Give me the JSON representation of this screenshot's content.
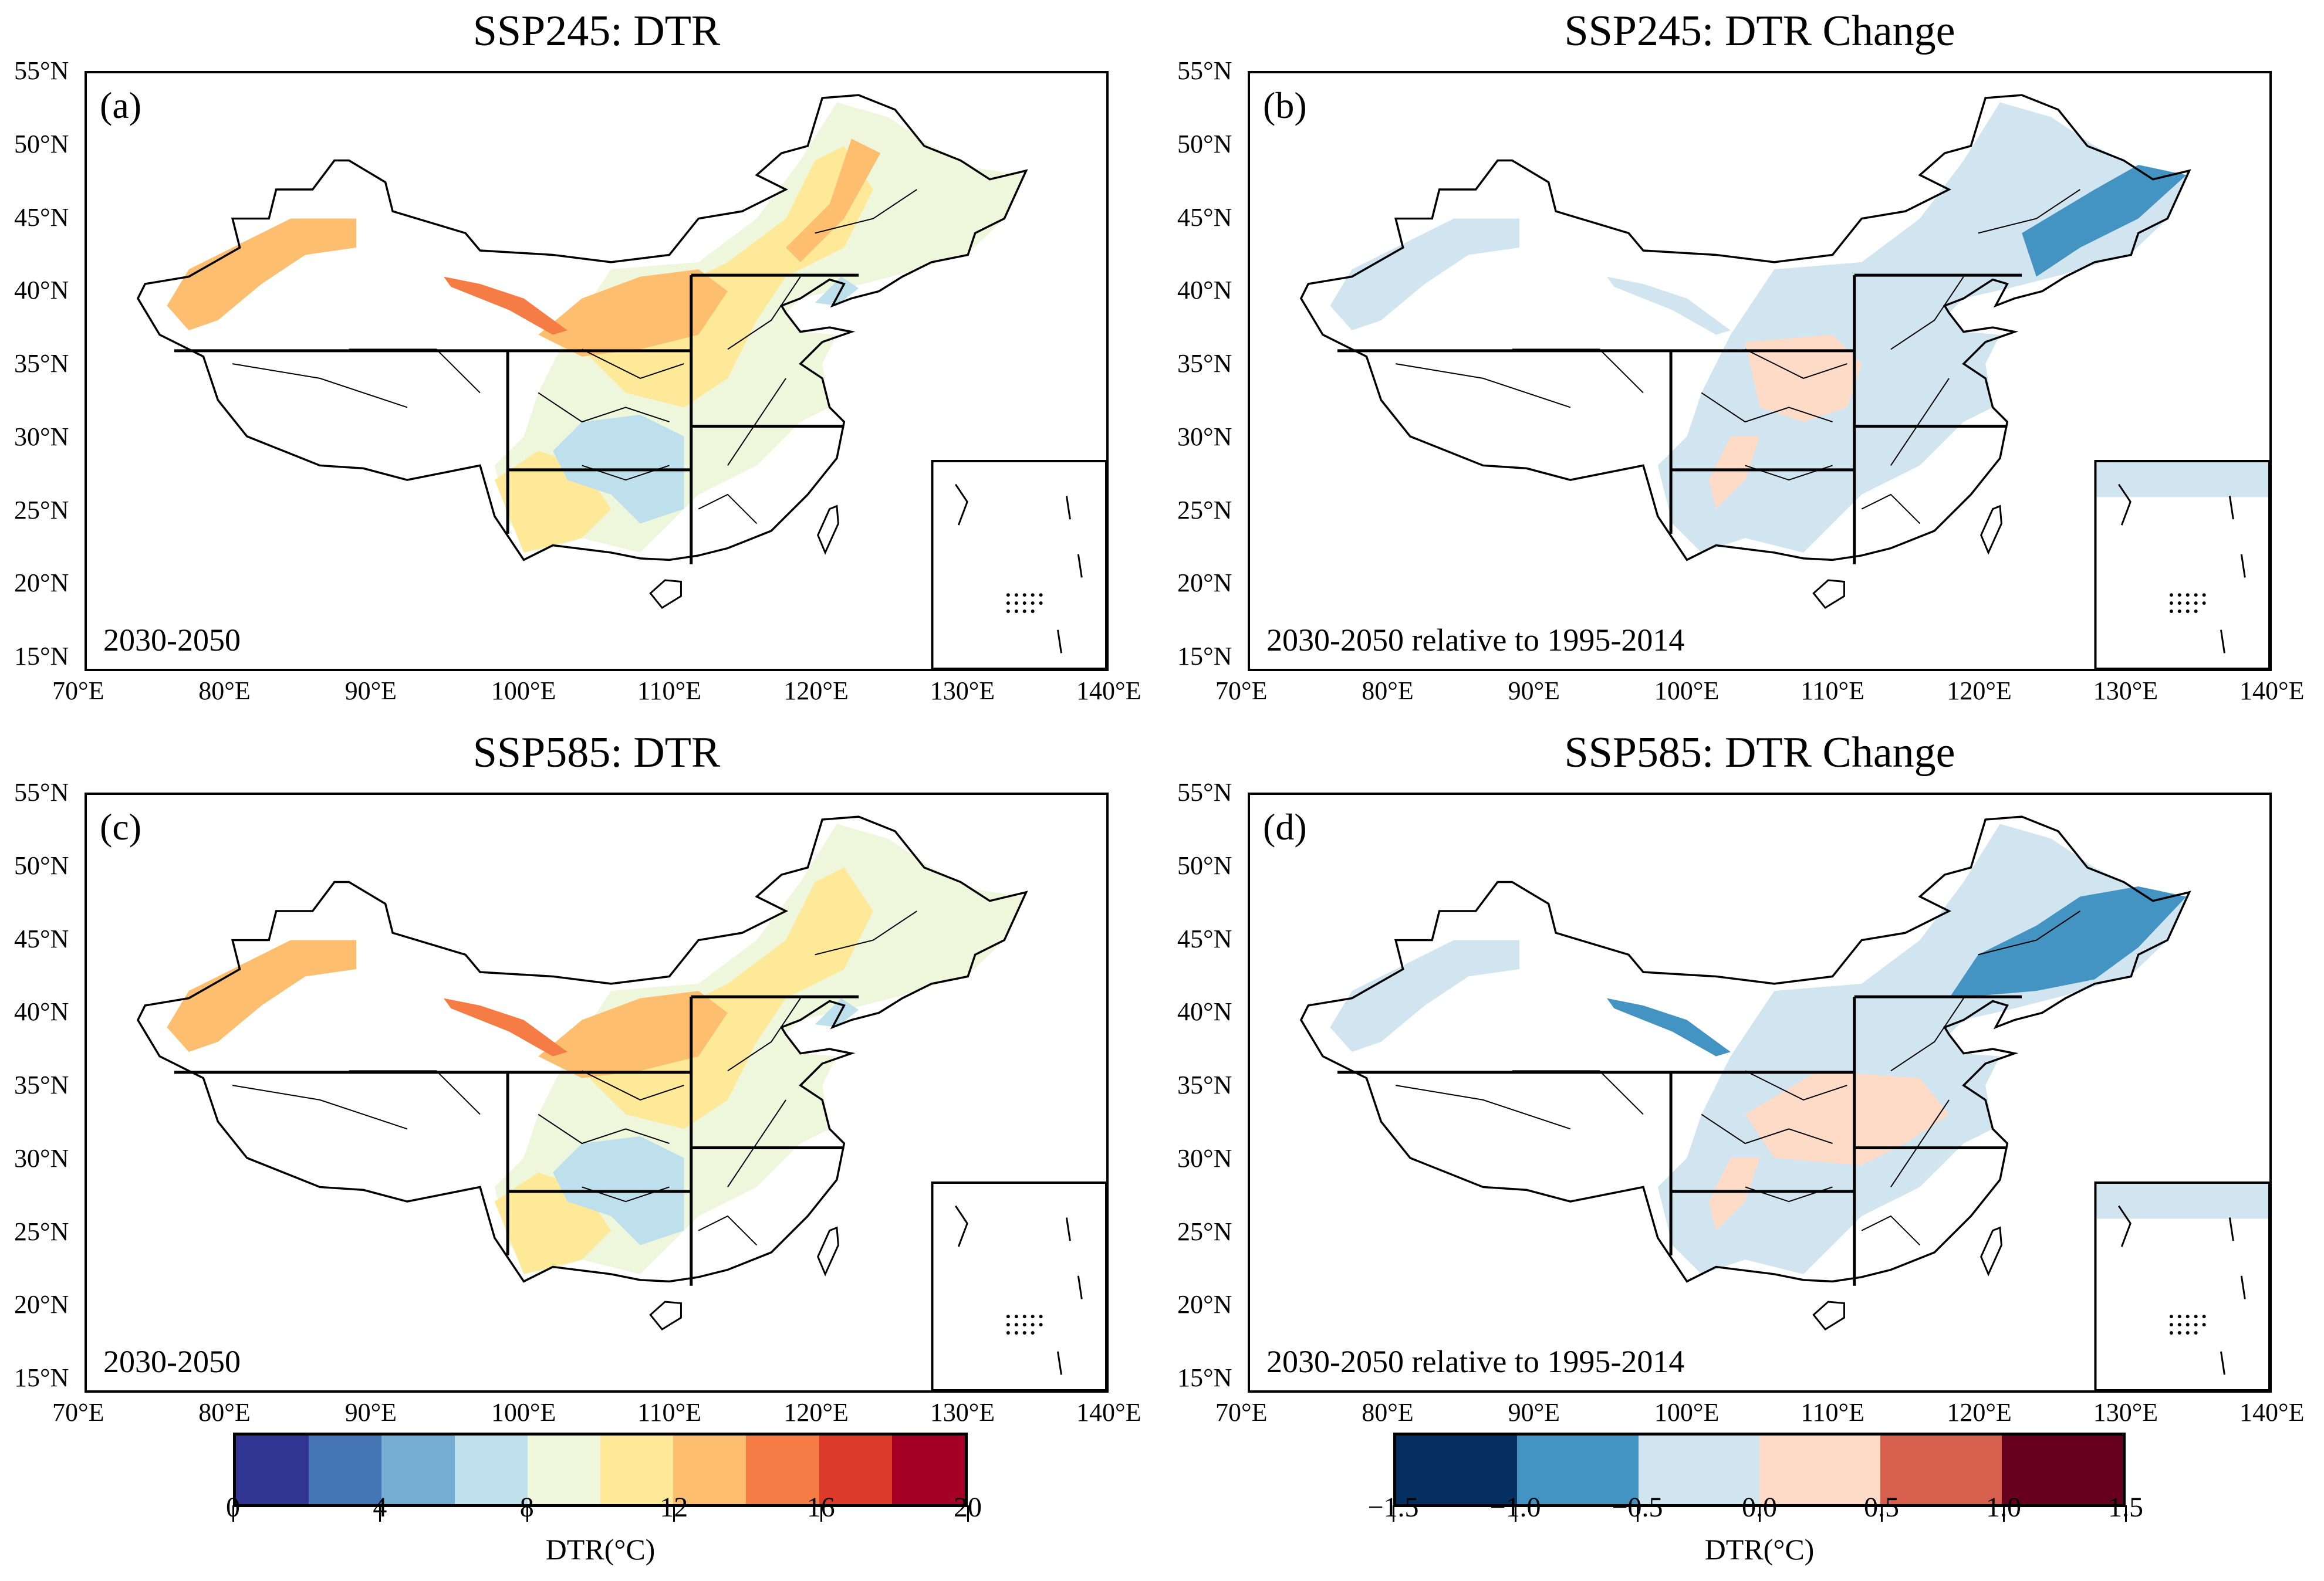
{
  "panels": [
    {
      "title": "SSP245: DTR",
      "label": "(a)",
      "period": "2030-2050",
      "scale": 0,
      "fills": [
        {
          "region": "east",
          "bin": 4
        },
        {
          "region": "yellow_n",
          "bin": 5
        },
        {
          "region": "yellow_sw",
          "bin": 5
        },
        {
          "region": "orange_n",
          "bin": 6
        },
        {
          "region": "orange_ne",
          "bin": 6
        },
        {
          "region": "sichuan",
          "bin": 3
        },
        {
          "region": "liaoning",
          "bin": 3
        },
        {
          "region": "xinjiang",
          "bin": 6
        },
        {
          "region": "hexi",
          "bin": 7
        }
      ]
    },
    {
      "title": "SSP245: DTR Change",
      "label": "(b)",
      "period": "2030-2050 relative to 1995-2014",
      "scale": 1,
      "fills": [
        {
          "region": "east",
          "bin": 2
        },
        {
          "region": "xinjiang",
          "bin": 2
        },
        {
          "region": "hexi",
          "bin": 2
        },
        {
          "region": "pink_c",
          "bin": 3
        },
        {
          "region": "pink_sw",
          "bin": 3
        },
        {
          "region": "ne_blue",
          "bin": 1
        }
      ]
    },
    {
      "title": "SSP585: DTR",
      "label": "(c)",
      "period": "2030-2050",
      "scale": 0,
      "fills": [
        {
          "region": "east",
          "bin": 4
        },
        {
          "region": "yellow_n",
          "bin": 5
        },
        {
          "region": "yellow_sw",
          "bin": 5
        },
        {
          "region": "orange_n",
          "bin": 6
        },
        {
          "region": "sichuan",
          "bin": 3
        },
        {
          "region": "liaoning",
          "bin": 3
        },
        {
          "region": "xinjiang",
          "bin": 6
        },
        {
          "region": "hexi",
          "bin": 7
        }
      ]
    },
    {
      "title": "SSP585: DTR Change",
      "label": "(d)",
      "period": "2030-2050 relative to 1995-2014",
      "scale": 1,
      "fills": [
        {
          "region": "east",
          "bin": 2
        },
        {
          "region": "xinjiang",
          "bin": 2
        },
        {
          "region": "hexi",
          "bin": 1
        },
        {
          "region": "pink_c2",
          "bin": 3
        },
        {
          "region": "pink_sw",
          "bin": 3
        },
        {
          "region": "ne_blue2",
          "bin": 1
        }
      ]
    }
  ],
  "axes": {
    "lat_ticks": [
      {
        "v": 55,
        "t": "55°N"
      },
      {
        "v": 50,
        "t": "50°N"
      },
      {
        "v": 45,
        "t": "45°N"
      },
      {
        "v": 40,
        "t": "40°N"
      },
      {
        "v": 35,
        "t": "35°N"
      },
      {
        "v": 30,
        "t": "30°N"
      },
      {
        "v": 25,
        "t": "25°N"
      },
      {
        "v": 20,
        "t": "20°N"
      },
      {
        "v": 15,
        "t": "15°N"
      }
    ],
    "lon_ticks": [
      {
        "v": 70,
        "t": "70°E"
      },
      {
        "v": 80,
        "t": "80°E"
      },
      {
        "v": 90,
        "t": "90°E"
      },
      {
        "v": 100,
        "t": "100°E"
      },
      {
        "v": 110,
        "t": "110°E"
      },
      {
        "v": 120,
        "t": "120°E"
      },
      {
        "v": 130,
        "t": "130°E"
      },
      {
        "v": 140,
        "t": "140°E"
      }
    ]
  },
  "colorbars": [
    {
      "label": "DTR(°C)",
      "ticks": [
        "0",
        "4",
        "8",
        "12",
        "16",
        "20"
      ],
      "colors": [
        "#313695",
        "#4575b4",
        "#74add1",
        "#bde0ec",
        "#eef6dc",
        "#fee999",
        "#fdbf6f",
        "#f67c45",
        "#dc3a2a",
        "#a50026"
      ]
    },
    {
      "label": "DTR(°C)",
      "ticks": [
        "−1.5",
        "−1.0",
        "−0.5",
        "0.0",
        "0.5",
        "1.0",
        "1.5"
      ],
      "colors": [
        "#053061",
        "#4393c3",
        "#d1e5f0",
        "#fddbc7",
        "#d6604d",
        "#67001f"
      ]
    }
  ]
}
